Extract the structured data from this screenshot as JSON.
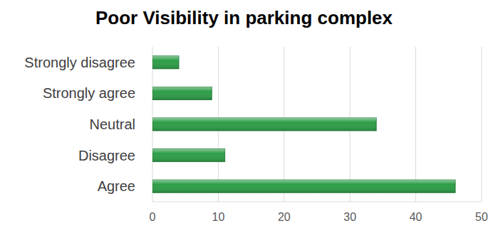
{
  "chart_data": {
    "type": "bar",
    "title": "Poor Visibility in parking complex",
    "orientation": "horizontal",
    "categories": [
      "Strongly disagree",
      "Strongly agree",
      "Neutral",
      "Disagree",
      "Agree"
    ],
    "values": [
      4,
      9,
      34,
      11,
      46
    ],
    "color": "#2e9e48",
    "xlim": [
      0,
      50
    ],
    "xticks": [
      0,
      10,
      20,
      30,
      40,
      50
    ],
    "grid": true
  }
}
